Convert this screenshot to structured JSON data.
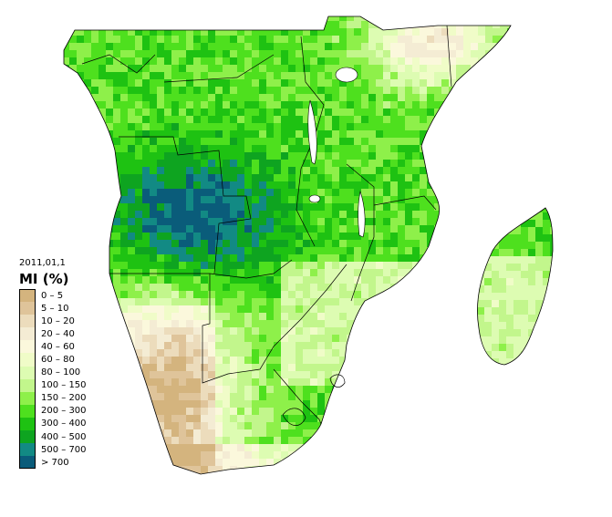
{
  "map": {
    "date_label": "2011,01,1",
    "legend_title": "MI (%)",
    "legend": [
      {
        "label": "0 – 5",
        "color": "#d4b47e"
      },
      {
        "label": "5 – 10",
        "color": "#dfc49a"
      },
      {
        "label": "10 – 20",
        "color": "#ecdcbc"
      },
      {
        "label": "20 – 40",
        "color": "#f4ecd4"
      },
      {
        "label": "40 – 60",
        "color": "#fbf8dc"
      },
      {
        "label": "60 – 80",
        "color": "#f0fcc8"
      },
      {
        "label": "80 – 100",
        "color": "#ddfcb2"
      },
      {
        "label": "100 – 150",
        "color": "#c2f68c"
      },
      {
        "label": "150 – 200",
        "color": "#8ef04a"
      },
      {
        "label": "200 – 300",
        "color": "#4ee01e"
      },
      {
        "label": "300 – 400",
        "color": "#1ec212"
      },
      {
        "label": "400 – 500",
        "color": "#0ea420"
      },
      {
        "label": "500 – 700",
        "color": "#128a84"
      },
      {
        "label": "> 700",
        "color": "#0a5c7a"
      }
    ]
  }
}
